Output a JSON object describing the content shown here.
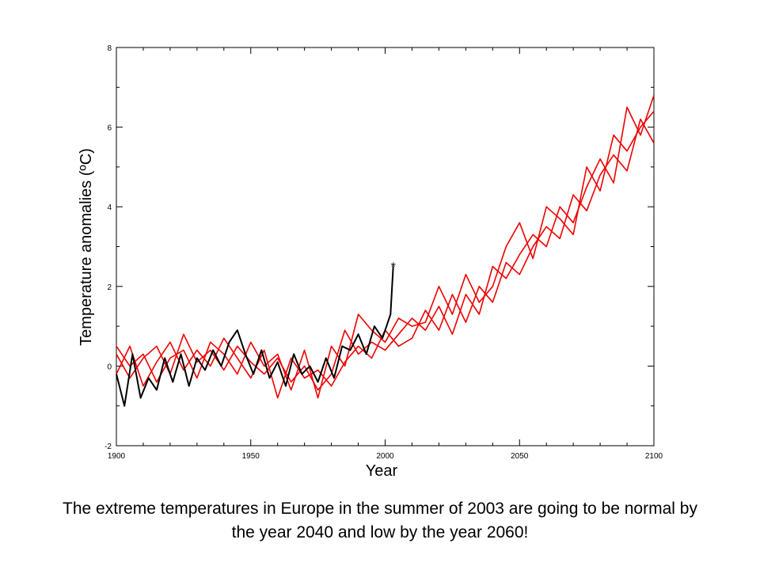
{
  "chart_data": {
    "type": "line",
    "title": "",
    "xlabel": "Year",
    "ylabel": "Temperature anomalies (ºC)",
    "xlim": [
      1900,
      2100
    ],
    "ylim": [
      -2,
      8
    ],
    "x_ticks": [
      1900,
      1950,
      2000,
      2050,
      2100
    ],
    "x_tick_labels": [
      "1900",
      "1950",
      "2000",
      "2050",
      "2100"
    ],
    "y_ticks": [
      -2,
      0,
      2,
      4,
      6,
      8
    ],
    "y_tick_labels": [
      "-2",
      "0",
      "2",
      "4",
      "6",
      "8"
    ],
    "grid": false,
    "colors": {
      "observed": "#000000",
      "model": "#ee0000",
      "axes": "#000000"
    },
    "series": [
      {
        "color": "#ee0000",
        "x": [
          1900,
          1905,
          1910,
          1915,
          1920,
          1925,
          1930,
          1935,
          1940,
          1945,
          1950,
          1955,
          1960,
          1965,
          1970,
          1975,
          1980,
          1985,
          1990,
          1995,
          2000,
          2005,
          2010,
          2015,
          2020,
          2025,
          2030,
          2035,
          2040,
          2045,
          2050,
          2055,
          2060,
          2065,
          2070,
          2075,
          2080,
          2085,
          2090,
          2095,
          2100
        ],
        "y": [
          0.3,
          -0.3,
          0.2,
          0.5,
          -0.2,
          0.8,
          0.1,
          0.4,
          -0.1,
          0.5,
          0.1,
          -0.2,
          0.2,
          -0.4,
          0.0,
          -0.6,
          -0.2,
          0.9,
          0.3,
          0.6,
          0.4,
          0.8,
          1.2,
          0.9,
          1.5,
          0.8,
          1.8,
          1.3,
          2.5,
          2.2,
          2.8,
          3.3,
          3.0,
          4.0,
          3.6,
          4.5,
          5.2,
          4.6,
          6.5,
          5.8,
          6.8
        ]
      },
      {
        "color": "#ee0000",
        "x": [
          1900,
          1905,
          1910,
          1915,
          1920,
          1925,
          1930,
          1935,
          1940,
          1945,
          1950,
          1955,
          1960,
          1965,
          1970,
          1975,
          1980,
          1985,
          1990,
          1995,
          2000,
          2005,
          2010,
          2015,
          2020,
          2025,
          2030,
          2035,
          2040,
          2045,
          2050,
          2055,
          2060,
          2065,
          2070,
          2075,
          2080,
          2085,
          2090,
          2095,
          2100
        ],
        "y": [
          -0.2,
          0.5,
          -0.5,
          0.1,
          0.6,
          -0.1,
          0.4,
          0.0,
          0.7,
          0.2,
          -0.3,
          0.4,
          -0.8,
          0.2,
          -0.3,
          -0.1,
          -0.5,
          0.1,
          0.5,
          0.2,
          0.9,
          0.5,
          0.7,
          1.4,
          0.9,
          1.8,
          1.1,
          2.0,
          1.6,
          2.6,
          2.3,
          3.0,
          3.5,
          3.2,
          4.3,
          3.9,
          4.8,
          5.3,
          4.9,
          6.2,
          5.6
        ]
      },
      {
        "color": "#ee0000",
        "x": [
          1900,
          1905,
          1910,
          1915,
          1920,
          1925,
          1930,
          1935,
          1940,
          1945,
          1950,
          1955,
          1960,
          1965,
          1970,
          1975,
          1980,
          1985,
          1990,
          1995,
          2000,
          2005,
          2010,
          2015,
          2020,
          2025,
          2030,
          2035,
          2040,
          2045,
          2050,
          2055,
          2060,
          2065,
          2070,
          2075,
          2080,
          2085,
          2090,
          2095,
          2100
        ],
        "y": [
          0.5,
          0.0,
          0.3,
          -0.4,
          0.2,
          0.4,
          -0.3,
          0.6,
          0.3,
          -0.2,
          0.6,
          0.0,
          0.3,
          -0.6,
          0.4,
          -0.8,
          0.5,
          0.0,
          1.3,
          0.9,
          0.6,
          1.2,
          1.0,
          1.1,
          2.0,
          1.3,
          2.3,
          1.6,
          2.0,
          3.0,
          3.6,
          2.7,
          4.0,
          3.7,
          3.3,
          5.0,
          4.4,
          5.8,
          5.4,
          6.0,
          6.4
        ]
      },
      {
        "color": "#000000",
        "x": [
          1900,
          1903,
          1906,
          1909,
          1912,
          1915,
          1918,
          1921,
          1924,
          1927,
          1930,
          1933,
          1936,
          1939,
          1942,
          1945,
          1948,
          1951,
          1954,
          1957,
          1960,
          1963,
          1966,
          1969,
          1972,
          1975,
          1978,
          1981,
          1984,
          1987,
          1990,
          1993,
          1996,
          1999,
          2002,
          2003
        ],
        "y": [
          -0.2,
          -1.0,
          0.3,
          -0.8,
          -0.3,
          -0.6,
          0.2,
          -0.4,
          0.3,
          -0.5,
          0.2,
          -0.1,
          0.4,
          0.0,
          0.6,
          0.9,
          0.3,
          -0.2,
          0.4,
          -0.3,
          0.1,
          -0.5,
          0.3,
          -0.2,
          0.0,
          -0.4,
          0.2,
          -0.3,
          0.5,
          0.4,
          0.8,
          0.3,
          1.0,
          0.7,
          1.3,
          2.5
        ]
      }
    ],
    "annotations": [
      {
        "text": "*",
        "x": 2003,
        "y": 2.5
      }
    ]
  },
  "caption": {
    "line1": "The extreme temperatures in Europe in the summer of 2003 are going to be normal by",
    "line2": "the year 2040 and low by the year 2060!"
  }
}
